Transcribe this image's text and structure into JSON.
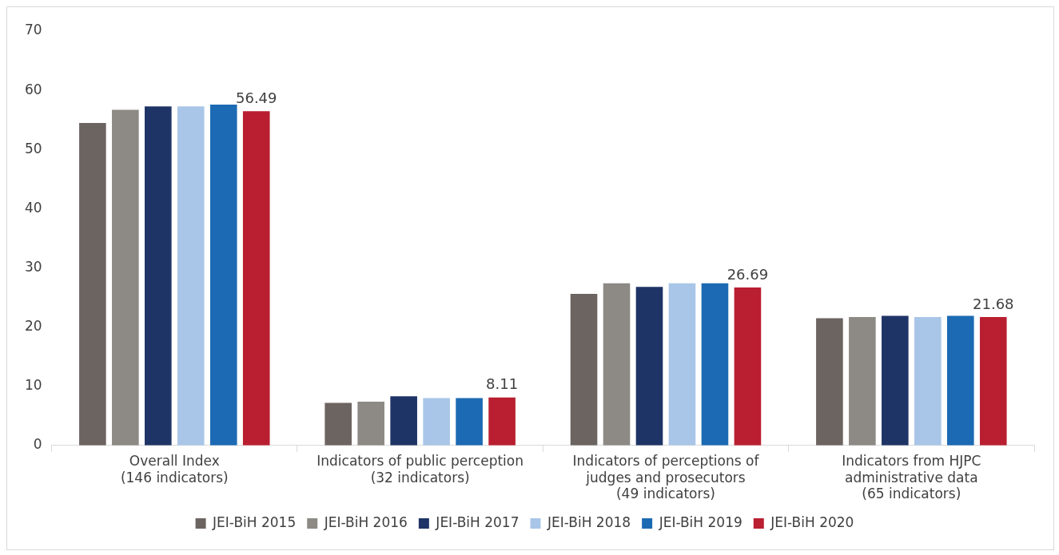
{
  "chart_data": {
    "type": "bar",
    "categories": [
      "Overall Index\n(146 indicators)",
      "Indicators of public perception\n(32 indicators)",
      "Indicators of perceptions of\njudges and prosecutors\n(49 indicators)",
      "Indicators from HJPC\nadministrative data\n(65 indicators)"
    ],
    "series": [
      {
        "name": "JEI-BiH 2015",
        "color": "#6c6461",
        "values": [
          54.5,
          7.2,
          25.6,
          21.5
        ]
      },
      {
        "name": "JEI-BiH 2016",
        "color": "#8d8a85",
        "values": [
          56.7,
          7.4,
          27.4,
          21.7
        ]
      },
      {
        "name": "JEI-BiH 2017",
        "color": "#1f3466",
        "values": [
          57.3,
          8.3,
          26.8,
          21.9
        ]
      },
      {
        "name": "JEI-BiH 2018",
        "color": "#a9c6e8",
        "values": [
          57.3,
          8.0,
          27.4,
          21.7
        ]
      },
      {
        "name": "JEI-BiH 2019",
        "color": "#1c6ab3",
        "values": [
          57.6,
          8.0,
          27.4,
          21.9
        ]
      },
      {
        "name": "JEI-BiH 2020",
        "color": "#b91f30",
        "values": [
          56.49,
          8.11,
          26.69,
          21.68
        ],
        "value_labels": [
          "56.49",
          "8.11",
          "26.69",
          "21.68"
        ]
      }
    ],
    "ylim": [
      0,
      70
    ],
    "yticks": [
      0,
      10,
      20,
      30,
      40,
      50,
      60,
      70
    ],
    "grid": false,
    "legend": "bottom"
  }
}
